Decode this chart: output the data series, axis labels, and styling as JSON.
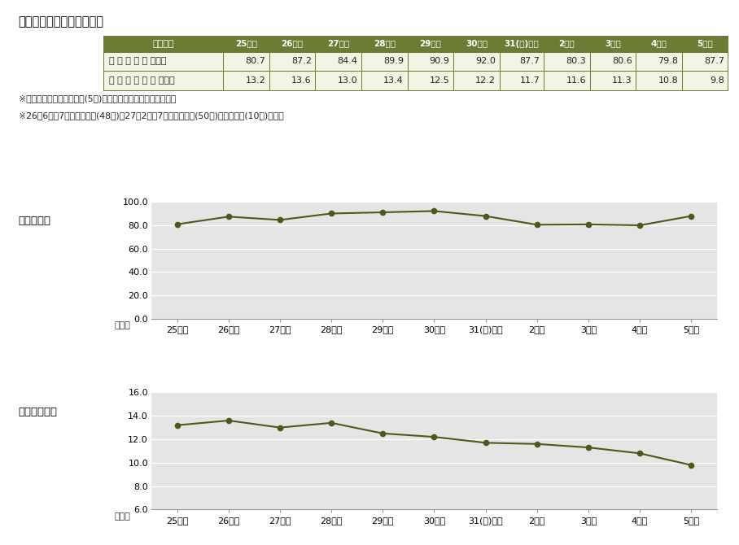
{
  "title": "病床稼働率・平均在院日数",
  "categories": [
    "25年度",
    "26年度",
    "27年度",
    "28年度",
    "29年度",
    "30年度",
    "31(元)年度",
    "2年度",
    "3年度",
    "4年度",
    "5年度"
  ],
  "occupancy_rate": [
    80.7,
    87.2,
    84.4,
    89.9,
    90.9,
    92.0,
    87.7,
    80.3,
    80.6,
    79.8,
    87.7
  ],
  "avg_stay": [
    13.2,
    13.6,
    13.0,
    13.4,
    12.5,
    12.2,
    11.7,
    11.6,
    11.3,
    10.8,
    9.8
  ],
  "note1": "※病床稼働率：人間ドック(5床)を除く稼働病床に対する稼働率",
  "note2": "※26年6月：7階西病棟稼働(48床)、27年2月：7階東病棟稼働(50床)、救急病棟(10床)未稼働",
  "chart1_title": "病床稼働率",
  "chart1_ylabel": "（％）",
  "chart1_ylim": [
    0.0,
    100.0
  ],
  "chart1_yticks": [
    0.0,
    20.0,
    40.0,
    60.0,
    80.0,
    100.0
  ],
  "chart2_title": "平均在院日数",
  "chart2_ylabel": "（日）",
  "chart2_ylim": [
    6.0,
    16.0
  ],
  "chart2_yticks": [
    6.0,
    8.0,
    10.0,
    12.0,
    14.0,
    16.0
  ],
  "line_color": "#4a5a1a",
  "marker_color": "#4a5a1a",
  "table_header_bg": "#6b7c35",
  "table_header_fg": "#ffffff",
  "table_row_bg": "#f2f5e3",
  "table_border_color": "#6b7c35",
  "plot_bg": "#e5e5e5",
  "grid_color": "#ffffff",
  "row1_label": "病 床 稼 働 率 （％）",
  "row2_label": "平 均 在 院 日 数 （日）",
  "col_header": "項　　目"
}
